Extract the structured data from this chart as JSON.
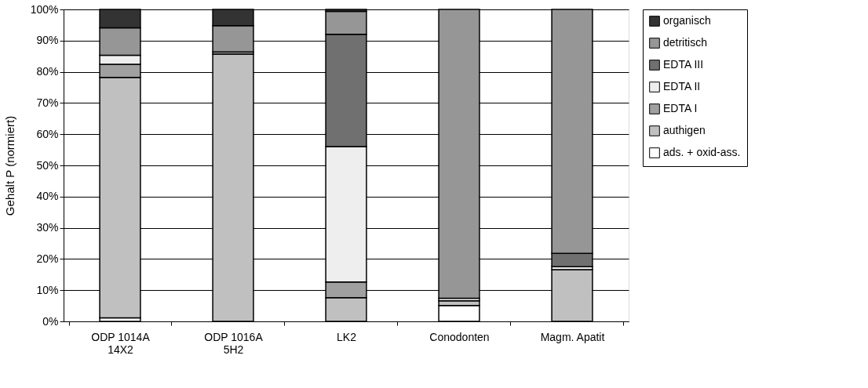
{
  "chart_data": {
    "type": "bar",
    "stacked": true,
    "ylabel": "Gehalt P (normiert)",
    "categories": [
      "ODP 1014A\n14X2",
      "ODP 1016A\n5H2",
      "LK2",
      "Conodonten",
      "Magm. Apatit"
    ],
    "series": [
      {
        "name": "ads. + oxid-ass.",
        "color": "#ffffff",
        "values": [
          1.1,
          null,
          null,
          5.1,
          null
        ]
      },
      {
        "name": "authigen",
        "color": "#c0c0c0",
        "values": [
          77.1,
          85.7,
          7.6,
          1.5,
          16.6
        ]
      },
      {
        "name": "EDTA I",
        "color": "#a0a0a0",
        "values": [
          4.2,
          0.7,
          5.0,
          null,
          null
        ]
      },
      {
        "name": "EDTA II",
        "color": "#eeeeee",
        "values": [
          2.9,
          null,
          43.4,
          0.8,
          0.9
        ]
      },
      {
        "name": "EDTA III",
        "color": "#707070",
        "values": [
          null,
          null,
          36.0,
          null,
          4.3
        ]
      },
      {
        "name": "detritisch",
        "color": "#969696",
        "values": [
          8.8,
          8.4,
          7.4,
          92.6,
          78.2
        ]
      },
      {
        "name": "organisch",
        "color": "#333333",
        "values": [
          5.9,
          5.2,
          0.6,
          null,
          null
        ]
      }
    ],
    "ylim": [
      0,
      100
    ],
    "yticks": [
      {
        "value": 0,
        "label": "0%"
      },
      {
        "value": 10,
        "label": "10%"
      },
      {
        "value": 20,
        "label": "20%"
      },
      {
        "value": 30,
        "label": "30%"
      },
      {
        "value": 40,
        "label": "40%"
      },
      {
        "value": 50,
        "label": "50%"
      },
      {
        "value": 60,
        "label": "60%"
      },
      {
        "value": 70,
        "label": "70%"
      },
      {
        "value": 80,
        "label": "80%"
      },
      {
        "value": 90,
        "label": "90%"
      },
      {
        "value": 100,
        "label": "100%"
      }
    ],
    "grid": "y",
    "legend": "right"
  }
}
